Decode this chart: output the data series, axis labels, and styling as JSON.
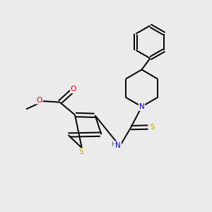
{
  "background_color": "#ebebeb",
  "bond_color": "#000000",
  "atom_colors": {
    "N": "#0000ee",
    "O": "#ee0000",
    "S_thio": "#bbaa00",
    "S_thph": "#bbaa00",
    "C": "#000000",
    "H": "#555555"
  },
  "figsize": [
    3.0,
    3.0
  ],
  "dpi": 100,
  "lw": 1.4,
  "fontsize": 7.5
}
